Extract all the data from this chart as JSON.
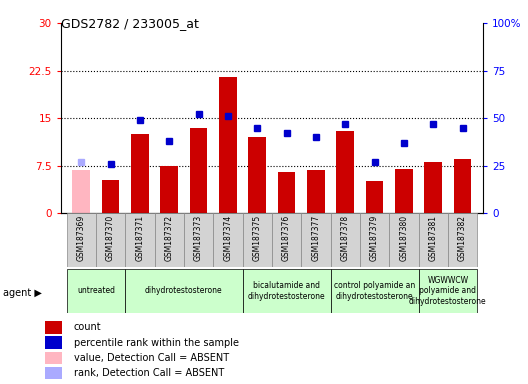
{
  "title": "GDS2782 / 233005_at",
  "samples": [
    "GSM187369",
    "GSM187370",
    "GSM187371",
    "GSM187372",
    "GSM187373",
    "GSM187374",
    "GSM187375",
    "GSM187376",
    "GSM187377",
    "GSM187378",
    "GSM187379",
    "GSM187380",
    "GSM187381",
    "GSM187382"
  ],
  "bar_values": [
    6.8,
    5.2,
    12.5,
    7.5,
    13.5,
    21.5,
    12.0,
    6.5,
    6.8,
    13.0,
    5.0,
    7.0,
    8.0,
    8.5
  ],
  "bar_absent": [
    true,
    false,
    false,
    false,
    false,
    false,
    false,
    false,
    false,
    false,
    false,
    false,
    false,
    false
  ],
  "rank_values": [
    27,
    26,
    49,
    38,
    52,
    51,
    45,
    42,
    40,
    47,
    27,
    37,
    47,
    45
  ],
  "rank_absent": [
    true,
    false,
    false,
    false,
    false,
    false,
    false,
    false,
    false,
    false,
    false,
    false,
    false,
    false
  ],
  "ylim_left": [
    0,
    30
  ],
  "ylim_right": [
    0,
    100
  ],
  "yticks_left": [
    0,
    7.5,
    15,
    22.5,
    30
  ],
  "yticks_right": [
    0,
    25,
    50,
    75,
    100
  ],
  "ytick_labels_left": [
    "0",
    "7.5",
    "15",
    "22.5",
    "30"
  ],
  "ytick_labels_right": [
    "0",
    "25",
    "50",
    "75",
    "100%"
  ],
  "bar_color_normal": "#CC0000",
  "bar_color_absent": "#FFB6C1",
  "rank_color_normal": "#0000CC",
  "rank_color_absent": "#AAAAFF",
  "agent_groups": [
    {
      "label": "untreated",
      "indices": [
        0,
        1
      ],
      "color": "#CCFFCC"
    },
    {
      "label": "dihydrotestosterone",
      "indices": [
        2,
        3,
        4,
        5
      ],
      "color": "#CCFFCC"
    },
    {
      "label": "bicalutamide and\ndihydrotestosterone",
      "indices": [
        6,
        7,
        8
      ],
      "color": "#CCFFCC"
    },
    {
      "label": "control polyamide an\ndihydrotestosterone",
      "indices": [
        9,
        10,
        11
      ],
      "color": "#CCFFCC"
    },
    {
      "label": "WGWWCW\npolyamide and\ndihydrotestosterone",
      "indices": [
        12,
        13
      ],
      "color": "#CCFFCC"
    }
  ],
  "legend_items": [
    {
      "label": "count",
      "color": "#CC0000"
    },
    {
      "label": "percentile rank within the sample",
      "color": "#0000CC"
    },
    {
      "label": "value, Detection Call = ABSENT",
      "color": "#FFB6C1"
    },
    {
      "label": "rank, Detection Call = ABSENT",
      "color": "#AAAAFF"
    }
  ],
  "xtick_box_color": "#D3D3D3",
  "xtick_box_border": "#888888"
}
